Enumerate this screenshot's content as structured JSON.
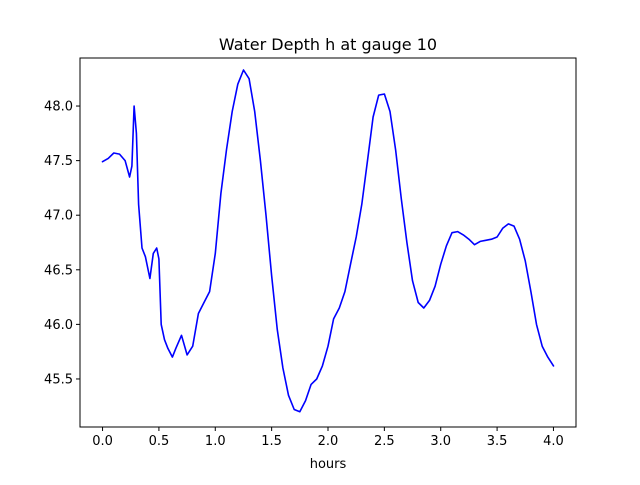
{
  "chart_data": {
    "type": "line",
    "title": "Water Depth h at gauge 10",
    "xlabel": "hours",
    "ylabel": "",
    "xlim": [
      -0.2,
      4.2
    ],
    "ylim": [
      45.06,
      48.44
    ],
    "grid": false,
    "legend": "none",
    "x_ticks": [
      0.0,
      0.5,
      1.0,
      1.5,
      2.0,
      2.5,
      3.0,
      3.5,
      4.0
    ],
    "x_tick_labels": [
      "0.0",
      "0.5",
      "1.0",
      "1.5",
      "2.0",
      "2.5",
      "3.0",
      "3.5",
      "4.0"
    ],
    "y_ticks": [
      45.5,
      46.0,
      46.5,
      47.0,
      47.5,
      48.0
    ],
    "y_tick_labels": [
      "45.5",
      "46.0",
      "46.5",
      "47.0",
      "47.5",
      "48.0"
    ],
    "series": [
      {
        "color": "#0000ff",
        "x": [
          0.0,
          0.05,
          0.1,
          0.15,
          0.2,
          0.24,
          0.26,
          0.28,
          0.3,
          0.32,
          0.35,
          0.38,
          0.42,
          0.45,
          0.48,
          0.5,
          0.52,
          0.55,
          0.58,
          0.62,
          0.65,
          0.7,
          0.75,
          0.8,
          0.85,
          0.9,
          0.95,
          1.0,
          1.05,
          1.1,
          1.15,
          1.2,
          1.25,
          1.3,
          1.35,
          1.4,
          1.45,
          1.5,
          1.55,
          1.6,
          1.65,
          1.7,
          1.75,
          1.8,
          1.85,
          1.9,
          1.95,
          2.0,
          2.05,
          2.1,
          2.15,
          2.2,
          2.25,
          2.3,
          2.35,
          2.4,
          2.45,
          2.5,
          2.55,
          2.6,
          2.65,
          2.7,
          2.75,
          2.8,
          2.85,
          2.9,
          2.95,
          3.0,
          3.05,
          3.1,
          3.15,
          3.2,
          3.25,
          3.3,
          3.35,
          3.4,
          3.45,
          3.5,
          3.55,
          3.6,
          3.65,
          3.7,
          3.75,
          3.8,
          3.85,
          3.9,
          3.95,
          4.0
        ],
        "y": [
          47.49,
          47.52,
          47.57,
          47.56,
          47.5,
          47.35,
          47.45,
          48.0,
          47.75,
          47.1,
          46.7,
          46.62,
          46.42,
          46.65,
          46.7,
          46.6,
          46.0,
          45.86,
          45.78,
          45.7,
          45.78,
          45.9,
          45.72,
          45.8,
          46.1,
          46.2,
          46.3,
          46.65,
          47.2,
          47.6,
          47.95,
          48.2,
          48.33,
          48.25,
          47.95,
          47.5,
          47.0,
          46.45,
          45.95,
          45.6,
          45.35,
          45.22,
          45.2,
          45.3,
          45.45,
          45.5,
          45.62,
          45.8,
          46.05,
          46.15,
          46.3,
          46.55,
          46.8,
          47.1,
          47.5,
          47.9,
          48.1,
          48.11,
          47.95,
          47.6,
          47.15,
          46.75,
          46.4,
          46.2,
          46.15,
          46.22,
          46.35,
          46.55,
          46.72,
          46.84,
          46.85,
          46.82,
          46.78,
          46.73,
          46.76,
          46.77,
          46.78,
          46.8,
          46.88,
          46.92,
          46.9,
          46.78,
          46.58,
          46.3,
          46.0,
          45.8,
          45.7,
          45.62
        ]
      }
    ]
  }
}
